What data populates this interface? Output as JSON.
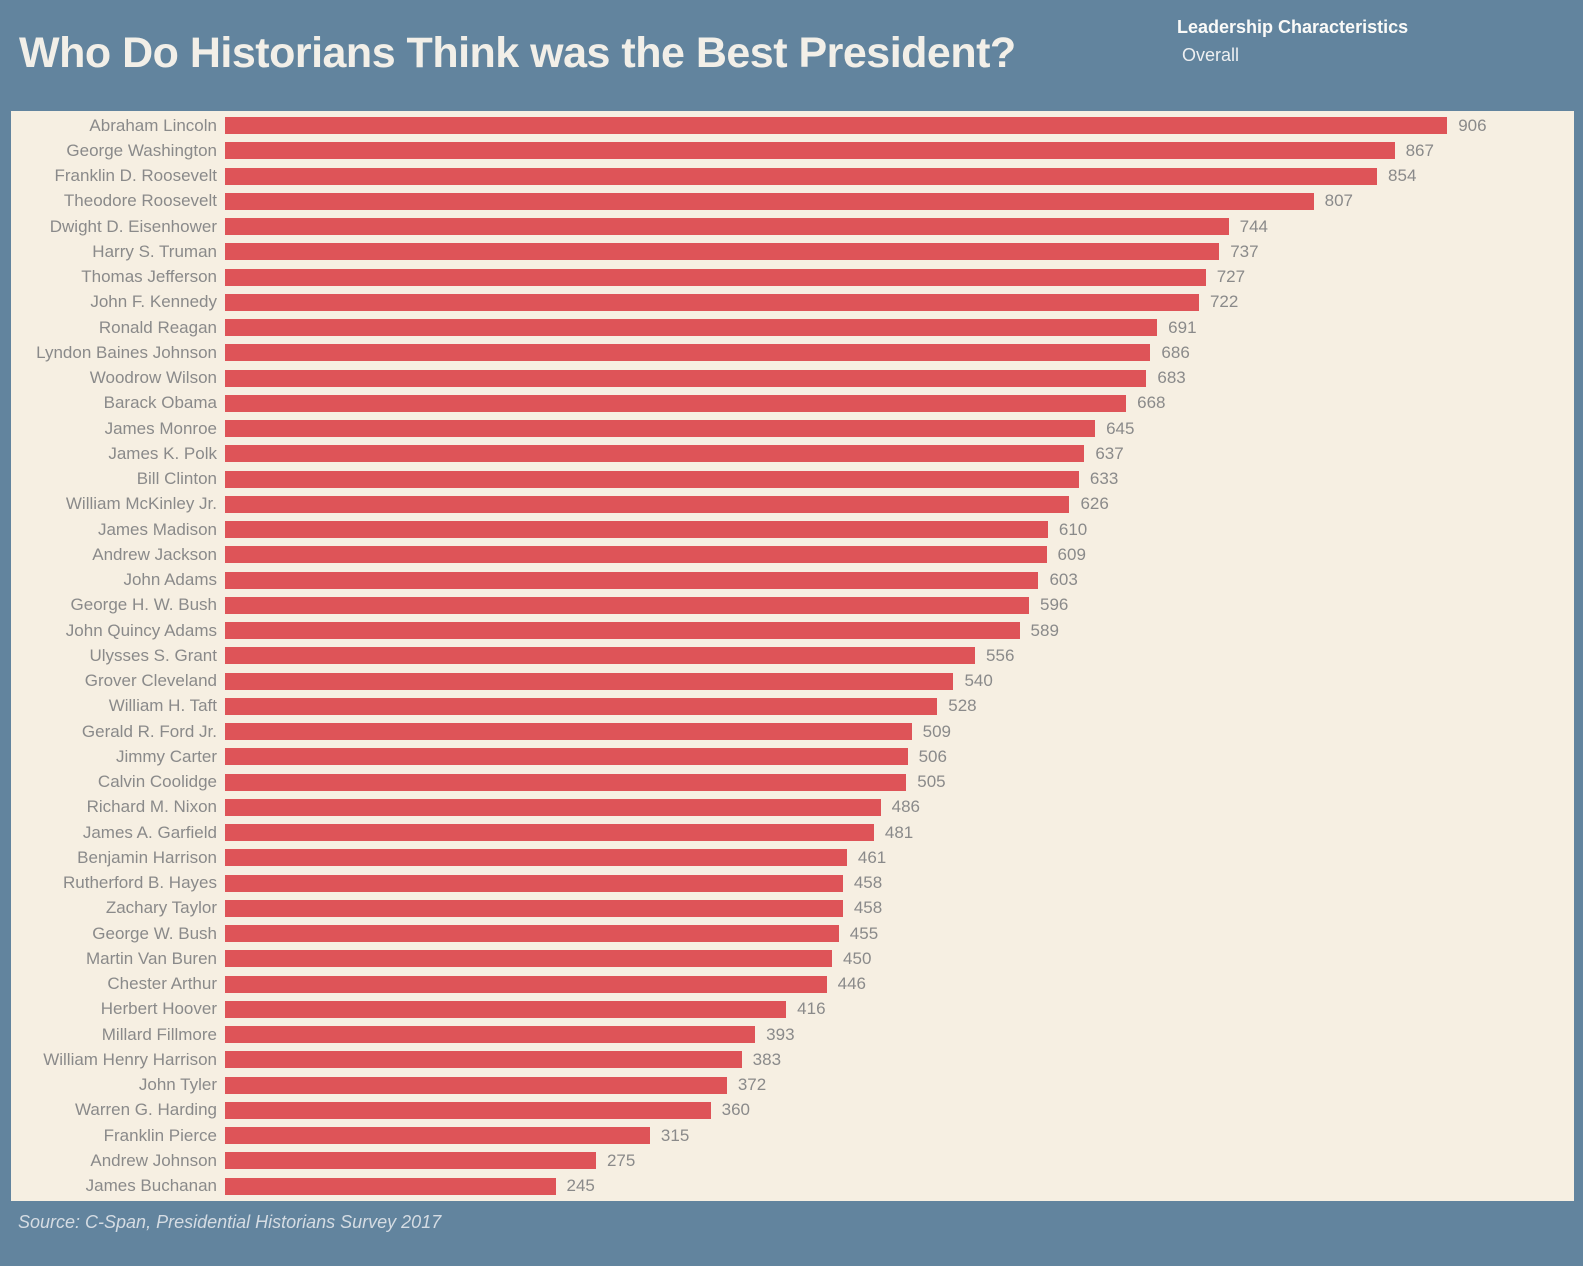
{
  "header": {
    "title": "Who Do Historians Think was the Best President?"
  },
  "legend": {
    "title": "Leadership Characteristics",
    "selected": "Overall"
  },
  "footer": {
    "source": "Source: C-Span, Presidential Historians Survey 2017"
  },
  "colors": {
    "background": "#62849E",
    "plot_background": "#F6EFE2",
    "bar": "#DE5458",
    "label": "#8A8A8A",
    "title_text": "#F2EFE8",
    "legend_title_text": "#FAFAF8",
    "legend_value_text": "#EDEFF1",
    "source_text": "#D5DCE3"
  },
  "chart_data": {
    "type": "bar",
    "orientation": "horizontal",
    "title": "Who Do Historians Think was the Best President?",
    "legend_title": "Leadership Characteristics",
    "legend_value": "Overall",
    "source": "Source: C-Span, Presidential Historians Survey 2017",
    "xlabel": "",
    "ylabel": "",
    "xlim": [
      0,
      1000
    ],
    "grid": false,
    "value_labels": true,
    "categories": [
      "Abraham Lincoln",
      "George Washington",
      "Franklin D. Roosevelt",
      "Theodore Roosevelt",
      "Dwight D. Eisenhower",
      "Harry S. Truman",
      "Thomas Jefferson",
      "John F. Kennedy",
      "Ronald Reagan",
      "Lyndon Baines Johnson",
      "Woodrow Wilson",
      "Barack Obama",
      "James Monroe",
      "James K. Polk",
      "Bill Clinton",
      "William McKinley Jr.",
      "James Madison",
      "Andrew Jackson",
      "John Adams",
      "George H. W. Bush",
      "John Quincy Adams",
      "Ulysses S. Grant",
      "Grover Cleveland",
      "William H. Taft",
      "Gerald R. Ford Jr.",
      "Jimmy Carter",
      "Calvin Coolidge",
      "Richard M. Nixon",
      "James A. Garfield",
      "Benjamin Harrison",
      "Rutherford B. Hayes",
      "Zachary Taylor",
      "George W. Bush",
      "Martin Van Buren",
      "Chester Arthur",
      "Herbert Hoover",
      "Millard Fillmore",
      "William Henry Harrison",
      "John Tyler",
      "Warren G. Harding",
      "Franklin Pierce",
      "Andrew Johnson",
      "James Buchanan"
    ],
    "values": [
      906,
      867,
      854,
      807,
      744,
      737,
      727,
      722,
      691,
      686,
      683,
      668,
      645,
      637,
      633,
      626,
      610,
      609,
      603,
      596,
      589,
      556,
      540,
      528,
      509,
      506,
      505,
      486,
      481,
      461,
      458,
      458,
      455,
      450,
      446,
      416,
      393,
      383,
      372,
      360,
      315,
      275,
      245
    ]
  }
}
